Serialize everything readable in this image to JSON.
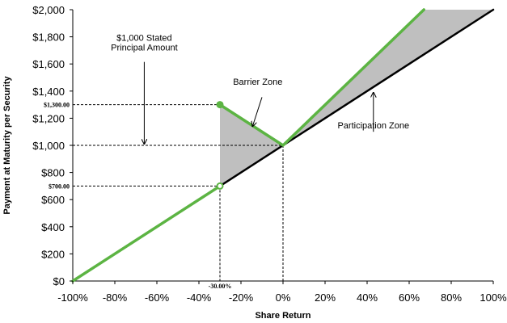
{
  "colors": {
    "green": "#5cb443",
    "black": "#000000",
    "shade": "#bfbfbf",
    "grid": "#d9d9d9"
  },
  "chart_data": {
    "type": "line",
    "xlabel": "Share Return",
    "ylabel": "Payment at Maturity per Security",
    "xlim": [
      -100,
      100
    ],
    "ylim": [
      0,
      2000
    ],
    "x_ticks": [
      -100,
      -80,
      -60,
      -40,
      -20,
      0,
      20,
      40,
      60,
      80,
      100
    ],
    "x_tick_labels": [
      "-100%",
      "-80%",
      "-60%",
      "-40%",
      "-20%",
      "0%",
      "20%",
      "40%",
      "60%",
      "80%",
      "100%"
    ],
    "y_ticks": [
      0,
      200,
      400,
      600,
      800,
      1000,
      1200,
      1400,
      1600,
      1800,
      2000
    ],
    "y_tick_labels": [
      "$0",
      "$200",
      "$400",
      "$600",
      "$800",
      "$1,000",
      "$1,200",
      "$1,400",
      "$1,600",
      "$1,800",
      "$2,000"
    ],
    "grid": false,
    "series": [
      {
        "color": "#000000",
        "values": [
          [
            -30,
            700
          ],
          [
            100,
            2000
          ]
        ]
      },
      {
        "color": "#5cb443",
        "values": [
          [
            -100,
            0
          ],
          [
            -30,
            700
          ]
        ]
      },
      {
        "color": "#5cb443",
        "values": [
          [
            -30,
            1300
          ],
          [
            0,
            1000
          ],
          [
            67,
            2000
          ]
        ]
      }
    ],
    "shaded_regions": [
      [
        [
          -30,
          700
        ],
        [
          -30,
          1300
        ],
        [
          0,
          1000
        ]
      ],
      [
        [
          0,
          1000
        ],
        [
          67,
          2000
        ],
        [
          100,
          2000
        ]
      ]
    ],
    "markers": [
      {
        "x": -30,
        "y": 1300,
        "style": "filled"
      },
      {
        "x": -30,
        "y": 700,
        "style": "hollow"
      }
    ],
    "reference_lines": [
      {
        "y": 1300,
        "x_end": -30,
        "label": "$1,300.00"
      },
      {
        "y": 1000,
        "x_end": 0
      },
      {
        "y": 700,
        "x_end": -30,
        "label": "$700.00"
      },
      {
        "x": -30,
        "y_end": 700,
        "label": "-30.00%"
      },
      {
        "x": 0,
        "y_end": 1000
      }
    ],
    "annotations": [
      {
        "id": "stated-principal",
        "lines": [
          "$1,000 Stated",
          "Principal Amount"
        ],
        "arrow_x": -66,
        "arrow_from_y": 1615,
        "arrow_to_y": 1010
      },
      {
        "id": "barrier-zone",
        "lines": [
          "Barrier Zone"
        ],
        "arrow_x": -12,
        "arrow_from_y": 1400,
        "arrow_to_y": 1140
      },
      {
        "id": "participation-zone",
        "lines": [
          "Participation Zone"
        ],
        "arrow_x": 43,
        "arrow_from_y": 1100,
        "arrow_to_y": 1390
      }
    ]
  }
}
